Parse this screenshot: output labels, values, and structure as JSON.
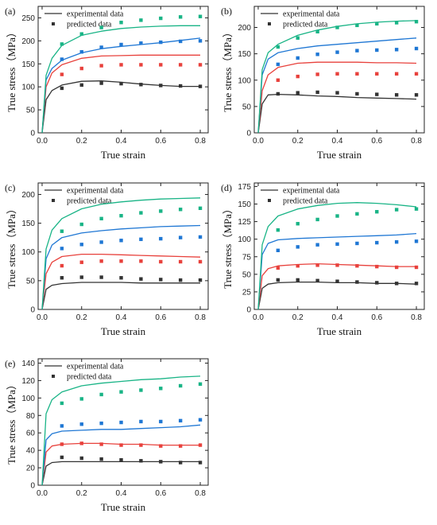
{
  "figure": {
    "legend": {
      "line_label": "experimental data",
      "marker_label": "predicted data"
    },
    "colors": [
      "#333333",
      "#e8413c",
      "#1f77d4",
      "#19b486"
    ]
  },
  "chart_data": [
    {
      "type": "line",
      "panel_label": "(a)",
      "xlabel": "True strain",
      "ylabel": "True stress（MPa）",
      "xlim": [
        -0.02,
        0.84
      ],
      "ylim": [
        0,
        275
      ],
      "xticks": [
        "0.0",
        "0.2",
        "0.4",
        "0.6",
        "0.8"
      ],
      "yticks": [
        "0",
        "50",
        "100",
        "150",
        "200",
        "250"
      ],
      "legend_position": "top",
      "experimental_x": [
        0,
        0.02,
        0.05,
        0.1,
        0.2,
        0.3,
        0.4,
        0.5,
        0.6,
        0.7,
        0.8
      ],
      "predicted_x": [
        0.1,
        0.2,
        0.3,
        0.4,
        0.5,
        0.6,
        0.7,
        0.8
      ],
      "series": [
        {
          "experimental": [
            0,
            72,
            92,
            104,
            112,
            113,
            110,
            106,
            103,
            101,
            101
          ],
          "predicted": [
            97,
            104,
            108,
            107,
            105,
            103,
            102,
            101
          ]
        },
        {
          "experimental": [
            0,
            100,
            130,
            148,
            162,
            167,
            168,
            169,
            169,
            169,
            169
          ],
          "predicted": [
            127,
            140,
            146,
            148,
            148,
            148,
            148,
            148
          ]
        },
        {
          "experimental": [
            0,
            115,
            140,
            158,
            174,
            183,
            188,
            192,
            196,
            201,
            206
          ],
          "predicted": [
            160,
            176,
            186,
            192,
            195,
            197,
            199,
            200
          ]
        },
        {
          "experimental": [
            0,
            125,
            162,
            190,
            212,
            221,
            227,
            230,
            232,
            233,
            233
          ],
          "predicted": [
            193,
            215,
            229,
            240,
            245,
            249,
            252,
            253
          ]
        }
      ]
    },
    {
      "type": "line",
      "panel_label": "(b)",
      "xlabel": "True strain",
      "ylabel": "True stress（MPa）",
      "xlim": [
        -0.02,
        0.84
      ],
      "ylim": [
        0,
        240
      ],
      "xticks": [
        "0.0",
        "0.2",
        "0.4",
        "0.6",
        "0.8"
      ],
      "yticks": [
        "0",
        "50",
        "100",
        "150",
        "200"
      ],
      "legend_position": "top",
      "experimental_x": [
        0,
        0.02,
        0.05,
        0.1,
        0.2,
        0.3,
        0.4,
        0.5,
        0.6,
        0.7,
        0.8
      ],
      "predicted_x": [
        0.1,
        0.2,
        0.3,
        0.4,
        0.5,
        0.6,
        0.7,
        0.8
      ],
      "series": [
        {
          "experimental": [
            0,
            55,
            72,
            73,
            72,
            70,
            69,
            67,
            66,
            65,
            64
          ],
          "predicted": [
            74,
            76,
            77,
            76,
            74,
            73,
            72,
            72
          ]
        },
        {
          "experimental": [
            0,
            80,
            110,
            124,
            132,
            134,
            134,
            134,
            133,
            133,
            132
          ],
          "predicted": [
            100,
            107,
            111,
            112,
            112,
            112,
            112,
            112
          ]
        },
        {
          "experimental": [
            0,
            110,
            140,
            152,
            160,
            165,
            168,
            171,
            174,
            177,
            180
          ],
          "predicted": [
            130,
            142,
            149,
            153,
            156,
            157,
            158,
            160
          ]
        },
        {
          "experimental": [
            0,
            120,
            152,
            168,
            185,
            195,
            202,
            207,
            210,
            212,
            213
          ],
          "predicted": [
            163,
            180,
            192,
            200,
            204,
            207,
            209,
            211
          ]
        }
      ]
    },
    {
      "type": "line",
      "panel_label": "(c)",
      "xlabel": "True strain",
      "ylabel": "True stress（MPa）",
      "xlim": [
        -0.02,
        0.84
      ],
      "ylim": [
        0,
        220
      ],
      "xticks": [
        "0.0",
        "0.2",
        "0.4",
        "0.6",
        "0.8"
      ],
      "yticks": [
        "0",
        "50",
        "100",
        "150",
        "200"
      ],
      "legend_position": "top",
      "experimental_x": [
        0,
        0.02,
        0.05,
        0.1,
        0.2,
        0.3,
        0.4,
        0.5,
        0.6,
        0.7,
        0.8
      ],
      "predicted_x": [
        0.1,
        0.2,
        0.3,
        0.4,
        0.5,
        0.6,
        0.7,
        0.8
      ],
      "series": [
        {
          "experimental": [
            0,
            35,
            42,
            45,
            47,
            47,
            47,
            46,
            46,
            46,
            46
          ],
          "predicted": [
            55,
            56,
            56,
            55,
            53,
            52,
            51,
            51
          ]
        },
        {
          "experimental": [
            0,
            62,
            82,
            92,
            96,
            96,
            95,
            94,
            93,
            92,
            91
          ],
          "predicted": [
            76,
            82,
            84,
            84,
            84,
            83,
            83,
            83
          ]
        },
        {
          "experimental": [
            0,
            88,
            112,
            125,
            133,
            137,
            140,
            142,
            144,
            145,
            146
          ],
          "predicted": [
            106,
            113,
            117,
            120,
            122,
            123,
            125,
            126
          ]
        },
        {
          "experimental": [
            0,
            105,
            138,
            158,
            175,
            183,
            187,
            190,
            192,
            193,
            194
          ],
          "predicted": [
            136,
            148,
            158,
            163,
            168,
            171,
            174,
            176
          ]
        }
      ]
    },
    {
      "type": "line",
      "panel_label": "(d)",
      "xlabel": "True strain",
      "ylabel": "True stress（MPa）",
      "xlim": [
        -0.02,
        0.84
      ],
      "ylim": [
        0,
        180
      ],
      "xticks": [
        "0.0",
        "0.2",
        "0.4",
        "0.6",
        "0.8"
      ],
      "yticks": [
        "0",
        "25",
        "50",
        "75",
        "100",
        "125",
        "150",
        "175"
      ],
      "legend_position": "top",
      "experimental_x": [
        0,
        0.02,
        0.05,
        0.1,
        0.2,
        0.3,
        0.4,
        0.5,
        0.6,
        0.7,
        0.8
      ],
      "predicted_x": [
        0.1,
        0.2,
        0.3,
        0.4,
        0.5,
        0.6,
        0.7,
        0.8
      ],
      "series": [
        {
          "experimental": [
            0,
            30,
            36,
            38,
            39,
            39,
            38,
            38,
            37,
            37,
            36
          ],
          "predicted": [
            42,
            42,
            41,
            40,
            39,
            38,
            37,
            37
          ]
        },
        {
          "experimental": [
            0,
            48,
            58,
            62,
            64,
            65,
            64,
            63,
            62,
            61,
            61
          ],
          "predicted": [
            59,
            62,
            63,
            63,
            62,
            61,
            60,
            60
          ]
        },
        {
          "experimental": [
            0,
            78,
            94,
            99,
            101,
            102,
            103,
            104,
            105,
            106,
            108
          ],
          "predicted": [
            84,
            89,
            92,
            93,
            94,
            95,
            96,
            97
          ]
        },
        {
          "experimental": [
            0,
            92,
            118,
            133,
            143,
            148,
            151,
            152,
            151,
            149,
            146
          ],
          "predicted": [
            113,
            122,
            128,
            133,
            136,
            139,
            142,
            143
          ]
        }
      ]
    },
    {
      "type": "line",
      "panel_label": "(e)",
      "xlabel": "True strain",
      "ylabel": "True stress（MPa）",
      "xlim": [
        -0.02,
        0.84
      ],
      "ylim": [
        0,
        145
      ],
      "xticks": [
        "0.0",
        "0.2",
        "0.4",
        "0.6",
        "0.8"
      ],
      "yticks": [
        "0",
        "20",
        "40",
        "60",
        "80",
        "100",
        "120",
        "140"
      ],
      "legend_position": "top",
      "experimental_x": [
        0,
        0.02,
        0.05,
        0.1,
        0.2,
        0.3,
        0.4,
        0.5,
        0.6,
        0.7,
        0.8
      ],
      "predicted_x": [
        0.1,
        0.2,
        0.3,
        0.4,
        0.5,
        0.6,
        0.7,
        0.8
      ],
      "series": [
        {
          "experimental": [
            0,
            22,
            26,
            27,
            27,
            27,
            27,
            27,
            27,
            27,
            27
          ],
          "predicted": [
            32,
            31,
            30,
            29,
            28,
            27,
            26,
            26
          ]
        },
        {
          "experimental": [
            0,
            38,
            45,
            47,
            48,
            48,
            47,
            47,
            46,
            46,
            46
          ],
          "predicted": [
            47,
            48,
            47,
            46,
            46,
            45,
            45,
            46
          ]
        },
        {
          "experimental": [
            0,
            52,
            59,
            62,
            63,
            64,
            64,
            65,
            66,
            67,
            69
          ],
          "predicted": [
            68,
            70,
            71,
            72,
            73,
            73,
            74,
            75
          ]
        },
        {
          "experimental": [
            0,
            82,
            98,
            107,
            114,
            117,
            119,
            121,
            122,
            124,
            125
          ],
          "predicted": [
            94,
            99,
            104,
            107,
            109,
            111,
            114,
            116
          ]
        }
      ]
    }
  ]
}
